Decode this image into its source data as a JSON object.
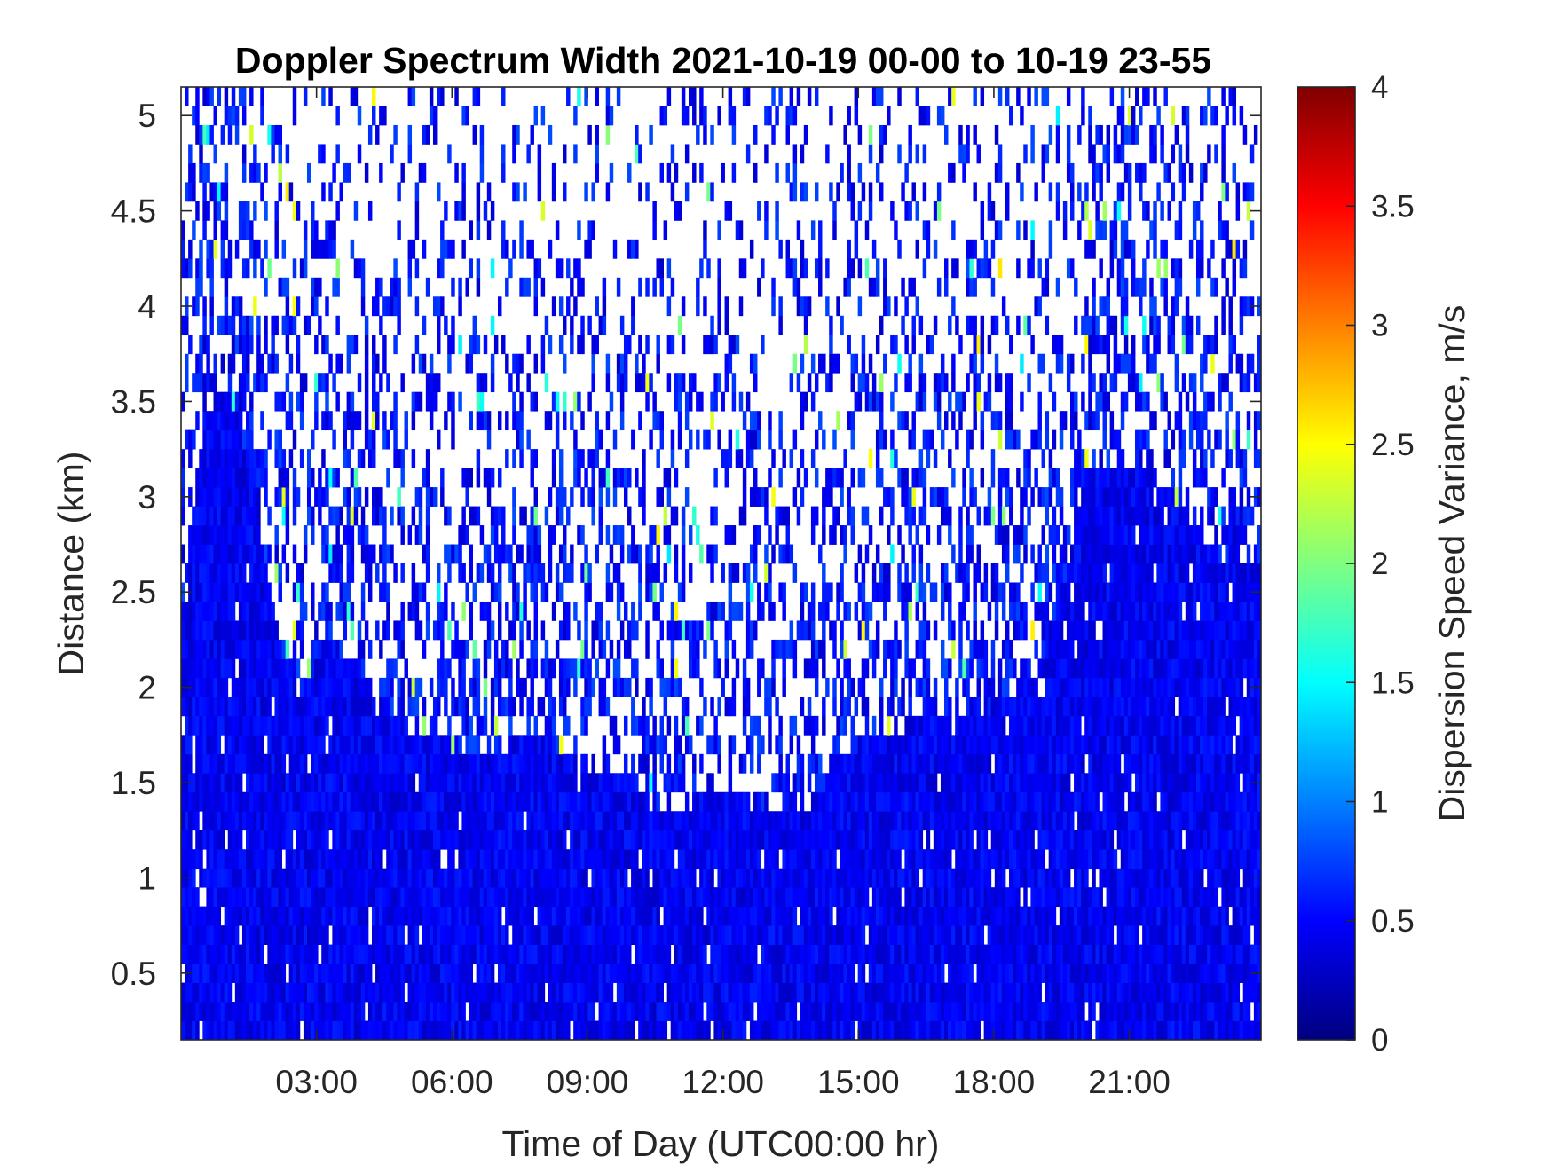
{
  "chart_data": {
    "type": "heatmap",
    "title": "Doppler Spectrum Width 2021-10-19 00-00 to 10-19 23-55",
    "xlabel": "Time of Day (UTC00:00 hr)",
    "ylabel": "Distance (km)",
    "xlim": [
      0,
      23.917
    ],
    "ylim": [
      0.15,
      5.15
    ],
    "xticks": [
      3,
      6,
      9,
      12,
      15,
      18,
      21
    ],
    "xtick_labels": [
      "03:00",
      "06:00",
      "09:00",
      "12:00",
      "15:00",
      "18:00",
      "21:00"
    ],
    "yticks": [
      0.5,
      1,
      1.5,
      2,
      2.5,
      3,
      3.5,
      4,
      4.5,
      5
    ],
    "ytick_labels": [
      "0.5",
      "1",
      "1.5",
      "2",
      "2.5",
      "3",
      "3.5",
      "4",
      "4.5",
      "5"
    ],
    "colorbar": {
      "label": "Dispersion Speed Variance, m/s",
      "range": [
        0,
        4
      ],
      "ticks": [
        0,
        0.5,
        1,
        1.5,
        2,
        2.5,
        3,
        3.5,
        4
      ],
      "tick_labels": [
        "0",
        "0.5",
        "1",
        "1.5",
        "2",
        "2.5",
        "3",
        "3.5",
        "4"
      ],
      "colormap": "jet"
    },
    "dense_layer_top_km": {
      "hours": [
        0,
        0.5,
        1,
        1.5,
        2,
        2.3,
        2.6,
        3,
        3.5,
        4,
        4.5,
        5,
        5.5,
        6,
        6.5,
        7,
        7.5,
        8,
        8.5,
        9,
        9.5,
        10,
        10.5,
        11,
        11.5,
        12,
        12.5,
        13,
        13.5,
        14,
        14.5,
        15,
        16,
        17,
        18,
        19,
        19.5,
        20,
        21,
        22,
        23,
        23.9
      ],
      "heights": [
        2.4,
        3.4,
        3.6,
        3.2,
        2.5,
        2.1,
        1.9,
        2.2,
        2.2,
        2.1,
        1.9,
        1.8,
        1.75,
        1.7,
        1.65,
        1.6,
        1.8,
        1.75,
        1.65,
        1.6,
        1.55,
        1.55,
        1.35,
        1.3,
        1.4,
        1.45,
        1.4,
        1.35,
        1.35,
        1.4,
        1.6,
        1.7,
        1.8,
        1.85,
        1.9,
        2.1,
        2.5,
        3.1,
        3.2,
        3.0,
        2.7,
        2.6
      ]
    },
    "typical_value_in_layer": 0.45,
    "sparse_values_above_layer": [
      0.3,
      0.8
    ],
    "rare_high_values": [
      1.4,
      2.6
    ]
  }
}
